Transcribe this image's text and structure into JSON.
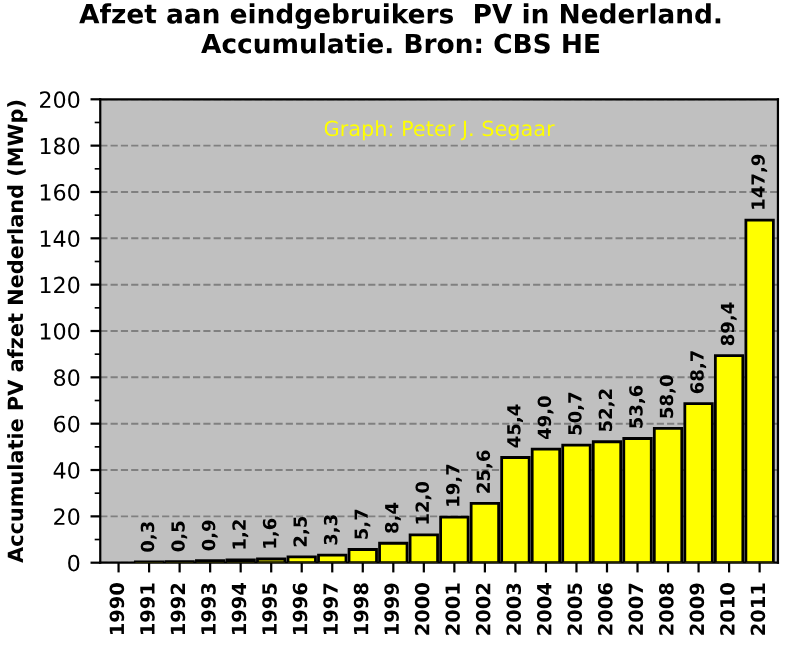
{
  "chart_data": {
    "type": "bar",
    "title": "Afzet aan eindgebruikers  PV in Nederland.\nAccumulatie. Bron: CBS HE",
    "ylabel": "Accumulatie PV afzet Nederland (MWp)",
    "annotations": [
      "Graph: Peter J. Segaar"
    ],
    "categories": [
      "1990",
      "1991",
      "1992",
      "1993",
      "1994",
      "1995",
      "1996",
      "1997",
      "1998",
      "1999",
      "2000",
      "2001",
      "2002",
      "2003",
      "2004",
      "2005",
      "2006",
      "2007",
      "2008",
      "2009",
      "2010",
      "2011"
    ],
    "values": [
      null,
      0.3,
      0.5,
      0.9,
      1.2,
      1.6,
      2.5,
      3.3,
      5.7,
      8.4,
      12.0,
      19.7,
      25.6,
      45.4,
      49.0,
      50.7,
      52.2,
      53.6,
      58.0,
      68.7,
      89.4,
      147.9
    ],
    "value_labels": [
      null,
      "0,3",
      "0,5",
      "0,9",
      "1,2",
      "1,6",
      "2,5",
      "3,3",
      "5,7",
      "8,4",
      "12,0",
      "19,7",
      "25,6",
      "45,4",
      "49,0",
      "50,7",
      "52,2",
      "53,6",
      "58,0",
      "68,7",
      "89,4",
      "147,9"
    ],
    "color": "#ffff00",
    "ylim": [
      0,
      200
    ],
    "yticks": [
      0,
      20,
      40,
      60,
      80,
      100,
      120,
      140,
      160,
      180,
      200
    ],
    "grid": "y"
  }
}
